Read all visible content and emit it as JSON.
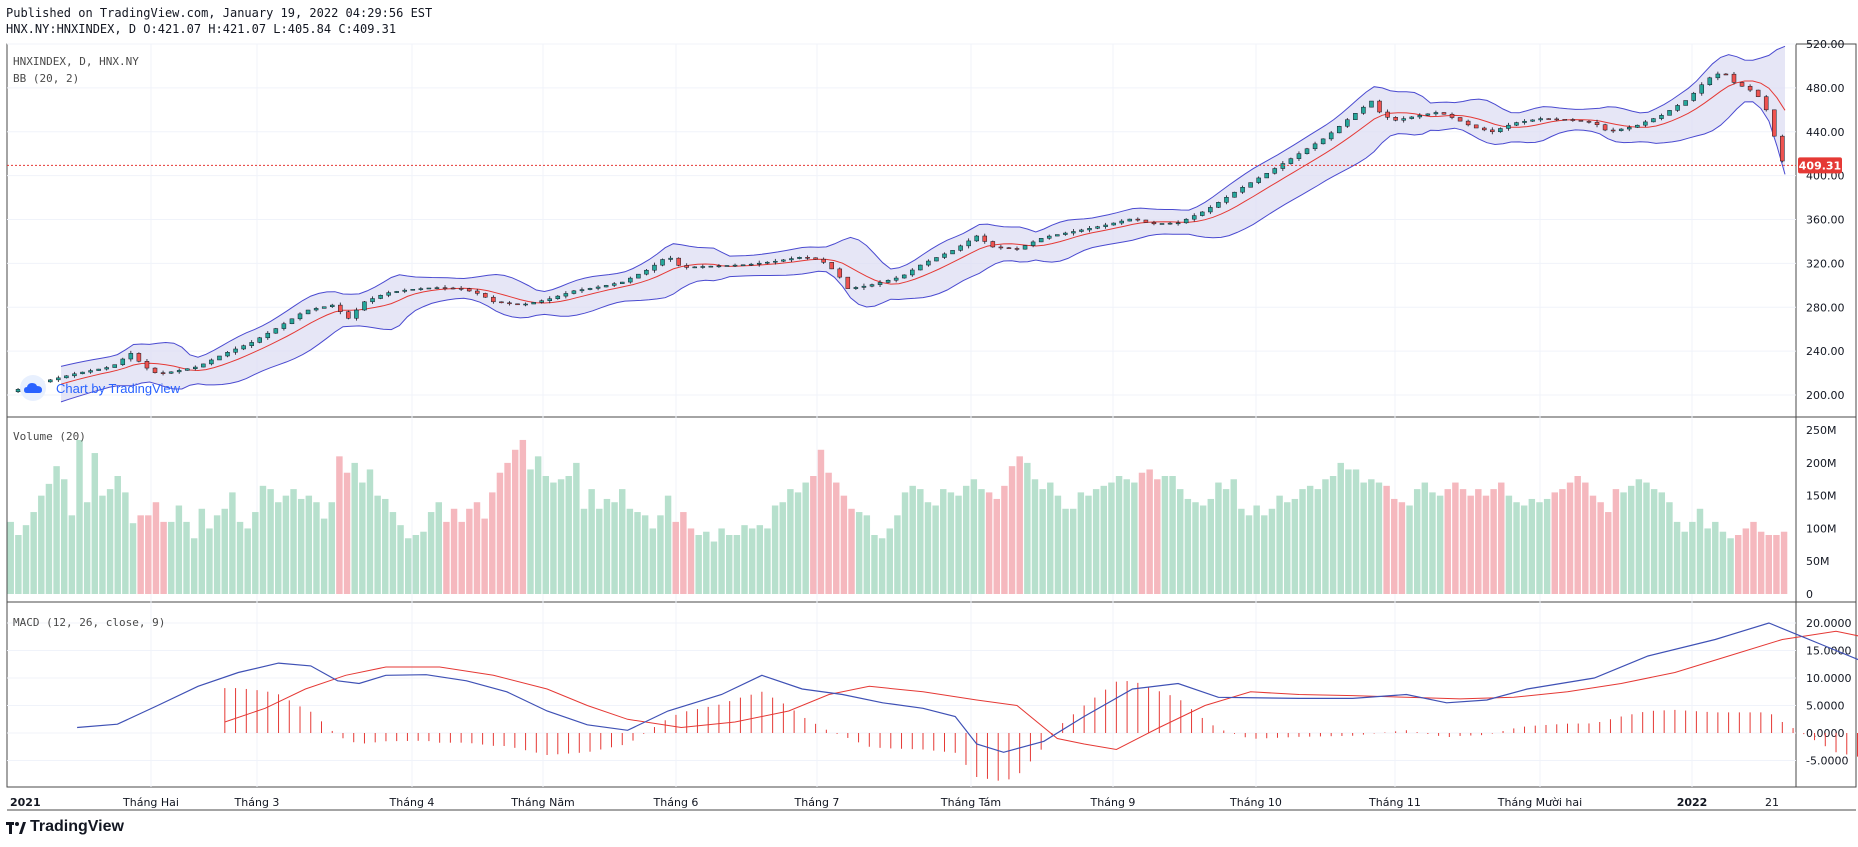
{
  "header": {
    "published": "Published on TradingView.com, January 19, 2022 04:29:56 EST",
    "ohlc": "HNX.NY:HNXINDEX, D O:421.07 H:421.07 L:405.84 C:409.31"
  },
  "panes": {
    "price": {
      "symbol_label": "HNXINDEX, D, HNX.NY",
      "indicator_label": "BB (20, 2)"
    },
    "volume": {
      "label": "Volume (20)"
    },
    "macd": {
      "label": "MACD (12, 26, close, 9)"
    }
  },
  "watermark": "Chart by TradingView",
  "footer_logo": "TradingView",
  "last_price_label": "409.31",
  "colors": {
    "up": "#26a69a",
    "down": "#ef5350",
    "bb_band": "#4a4ad0",
    "bb_basis": "#e53935",
    "bb_fill": "#dcdcf2",
    "vol_up": "#b7e0cd",
    "vol_down": "#f5b8be",
    "macd_line": "#3f51b5",
    "signal_line": "#e53935",
    "hist": "#e53935",
    "price_line": "#e53935"
  },
  "chart_data": [
    {
      "type": "candlestick",
      "title": "HNXINDEX, D, HNX.NY",
      "x_axis_labels": [
        "2021",
        "Tháng Hai",
        "Tháng 3",
        "Tháng 4",
        "Tháng Năm",
        "Tháng 6",
        "Tháng 7",
        "Tháng Tám",
        "Tháng 9",
        "Tháng 10",
        "Tháng 11",
        "Tháng Mười hai",
        "2022",
        "21"
      ],
      "y_ticks": [
        "200.00",
        "240.00",
        "280.00",
        "320.00",
        "360.00",
        "400.00",
        "440.00",
        "480.00",
        "520.00"
      ],
      "ylim": [
        180,
        520
      ],
      "close_path": [
        [
          0,
          203
        ],
        [
          12,
          212
        ],
        [
          25,
          220
        ],
        [
          38,
          226
        ],
        [
          45,
          238
        ],
        [
          50,
          226
        ],
        [
          55,
          219
        ],
        [
          62,
          222
        ],
        [
          70,
          226
        ],
        [
          80,
          238
        ],
        [
          90,
          248
        ],
        [
          100,
          262
        ],
        [
          110,
          277
        ],
        [
          120,
          282
        ],
        [
          126,
          270
        ],
        [
          132,
          285
        ],
        [
          140,
          293
        ],
        [
          148,
          296
        ],
        [
          158,
          298
        ],
        [
          168,
          297
        ],
        [
          175,
          292
        ],
        [
          180,
          285
        ],
        [
          190,
          282
        ],
        [
          200,
          287
        ],
        [
          210,
          295
        ],
        [
          218,
          298
        ],
        [
          228,
          303
        ],
        [
          238,
          315
        ],
        [
          245,
          327
        ],
        [
          250,
          316
        ],
        [
          256,
          317
        ],
        [
          266,
          318
        ],
        [
          275,
          319
        ],
        [
          285,
          322
        ],
        [
          295,
          326
        ],
        [
          302,
          323
        ],
        [
          308,
          311
        ],
        [
          312,
          297
        ],
        [
          320,
          300
        ],
        [
          332,
          308
        ],
        [
          340,
          320
        ],
        [
          352,
          333
        ],
        [
          360,
          345
        ],
        [
          366,
          335
        ],
        [
          375,
          333
        ],
        [
          385,
          344
        ],
        [
          398,
          350
        ],
        [
          408,
          355
        ],
        [
          418,
          361
        ],
        [
          425,
          356
        ],
        [
          435,
          357
        ],
        [
          445,
          368
        ],
        [
          458,
          388
        ],
        [
          470,
          405
        ],
        [
          480,
          420
        ],
        [
          490,
          435
        ],
        [
          500,
          455
        ],
        [
          507,
          468
        ],
        [
          510,
          458
        ],
        [
          515,
          450
        ],
        [
          525,
          455
        ],
        [
          532,
          458
        ],
        [
          538,
          452
        ],
        [
          545,
          444
        ],
        [
          552,
          440
        ],
        [
          560,
          448
        ],
        [
          570,
          452
        ],
        [
          580,
          451
        ],
        [
          590,
          448
        ],
        [
          595,
          440
        ],
        [
          605,
          445
        ],
        [
          615,
          455
        ],
        [
          625,
          470
        ],
        [
          632,
          488
        ],
        [
          638,
          495
        ],
        [
          642,
          485
        ],
        [
          648,
          478
        ],
        [
          652,
          470
        ],
        [
          656,
          450
        ],
        [
          658,
          422
        ],
        [
          661,
          409
        ]
      ],
      "last": {
        "open": 421.07,
        "high": 421.07,
        "low": 405.84,
        "close": 409.31
      }
    },
    {
      "type": "bar",
      "title": "Volume (20)",
      "y_ticks": [
        "0",
        "50M",
        "100M",
        "150M",
        "200M",
        "250M"
      ],
      "ylim": [
        0,
        270
      ],
      "values": [
        110,
        90,
        105,
        125,
        150,
        168,
        195,
        175,
        120,
        235,
        140,
        215,
        150,
        160,
        180,
        155,
        108,
        120,
        120,
        140,
        110,
        110,
        135,
        110,
        85,
        130,
        100,
        120,
        130,
        155,
        110,
        100,
        125,
        165,
        160,
        140,
        150,
        160,
        145,
        150,
        140,
        115,
        140,
        210,
        185,
        200,
        170,
        190,
        150,
        145,
        125,
        105,
        85,
        90,
        95,
        125,
        140,
        110,
        130,
        110,
        130,
        140,
        115,
        155,
        185,
        200,
        220,
        235,
        190,
        210,
        180,
        170,
        175,
        180,
        200,
        130,
        160,
        130,
        145,
        140,
        160,
        130,
        125,
        120,
        100,
        120,
        150,
        110,
        125,
        100,
        90,
        95,
        80,
        100,
        90,
        90,
        105,
        100,
        105,
        100,
        135,
        140,
        160,
        155,
        170,
        180,
        220,
        185,
        170,
        150,
        130,
        125,
        120,
        90,
        85,
        100,
        120,
        155,
        165,
        160,
        140,
        135,
        160,
        155,
        150,
        165,
        175,
        160,
        155,
        145,
        165,
        195,
        210,
        200,
        175,
        160,
        170,
        150,
        130,
        130,
        155,
        150,
        160,
        165,
        170,
        180,
        175,
        170,
        185,
        190,
        175,
        180,
        180,
        160,
        145,
        140,
        135,
        145,
        170,
        160,
        175,
        130,
        120,
        135,
        120,
        130,
        150,
        140,
        145,
        160,
        165,
        160,
        175,
        180,
        200,
        190,
        190,
        170,
        175,
        170,
        165,
        145,
        140,
        135,
        160,
        170,
        155,
        150,
        160,
        170,
        160,
        150,
        160,
        150,
        160,
        170,
        150,
        140,
        135,
        145,
        140,
        145,
        155,
        160,
        170,
        180,
        170,
        150,
        140,
        125,
        160,
        155,
        165,
        175,
        170,
        160,
        155,
        140,
        110,
        95,
        110,
        130,
        100,
        110,
        95,
        85,
        90,
        100,
        110,
        95,
        90,
        90,
        95
      ]
    },
    {
      "type": "line",
      "title": "MACD (12, 26, close, 9)",
      "y_ticks": [
        "-5.0000",
        "0.0000",
        "5.0000",
        "10.0000",
        "15.0000",
        "20.0000"
      ],
      "ylim": [
        -8,
        22
      ],
      "series": [
        {
          "name": "MACD",
          "values": [
            [
              25,
              1
            ],
            [
              40,
              1.6
            ],
            [
              55,
              5
            ],
            [
              70,
              8.5
            ],
            [
              85,
              11
            ],
            [
              100,
              12.7
            ],
            [
              112,
              12.2
            ],
            [
              122,
              9.5
            ],
            [
              130,
              9
            ],
            [
              140,
              10.5
            ],
            [
              155,
              10.6
            ],
            [
              170,
              9.5
            ],
            [
              185,
              7.5
            ],
            [
              200,
              4
            ],
            [
              215,
              1.5
            ],
            [
              230,
              0.5
            ],
            [
              245,
              4
            ],
            [
              265,
              7
            ],
            [
              280,
              10.5
            ],
            [
              295,
              8
            ],
            [
              310,
              7
            ],
            [
              325,
              5.5
            ],
            [
              340,
              4.5
            ],
            [
              352,
              3
            ],
            [
              360,
              -2
            ],
            [
              370,
              -3.5
            ],
            [
              385,
              -1.5
            ],
            [
              400,
              3
            ],
            [
              418,
              8
            ],
            [
              435,
              9
            ],
            [
              450,
              6.5
            ],
            [
              480,
              6.3
            ],
            [
              500,
              6.3
            ],
            [
              520,
              7
            ],
            [
              535,
              5.5
            ],
            [
              550,
              6
            ],
            [
              565,
              8
            ],
            [
              590,
              10
            ],
            [
              610,
              14
            ],
            [
              635,
              17
            ],
            [
              655,
              20
            ],
            [
              675,
              16
            ],
            [
              700,
              11
            ],
            [
              725,
              7
            ],
            [
              750,
              4
            ],
            [
              765,
              3
            ],
            [
              780,
              3.5
            ],
            [
              800,
              8
            ],
            [
              815,
              10.2
            ],
            [
              830,
              7.5
            ],
            [
              845,
              0
            ],
            [
              851,
              -5
            ]
          ]
        },
        {
          "name": "Signal",
          "values": [
            [
              80,
              2
            ],
            [
              95,
              4.5
            ],
            [
              110,
              8
            ],
            [
              125,
              10.5
            ],
            [
              140,
              12
            ],
            [
              160,
              12
            ],
            [
              180,
              10.5
            ],
            [
              200,
              8
            ],
            [
              215,
              5
            ],
            [
              230,
              2.5
            ],
            [
              250,
              1
            ],
            [
              270,
              2
            ],
            [
              290,
              4
            ],
            [
              305,
              7
            ],
            [
              320,
              8.5
            ],
            [
              340,
              7.5
            ],
            [
              360,
              6
            ],
            [
              375,
              5
            ],
            [
              390,
              -1
            ],
            [
              400,
              -2
            ],
            [
              412,
              -3
            ],
            [
              428,
              1
            ],
            [
              445,
              5
            ],
            [
              462,
              7.5
            ],
            [
              480,
              7
            ],
            [
              500,
              6.8
            ],
            [
              520,
              6.5
            ],
            [
              540,
              6.2
            ],
            [
              560,
              6.5
            ],
            [
              580,
              7.5
            ],
            [
              600,
              9
            ],
            [
              620,
              11
            ],
            [
              640,
              14
            ],
            [
              660,
              17
            ],
            [
              680,
              18.5
            ],
            [
              700,
              16.5
            ],
            [
              720,
              12
            ],
            [
              745,
              8
            ],
            [
              770,
              5.5
            ],
            [
              790,
              4
            ],
            [
              805,
              6
            ],
            [
              825,
              8
            ],
            [
              845,
              5
            ],
            [
              851,
              4
            ]
          ]
        }
      ],
      "histogram_range": [
        -5.5,
        3
      ]
    }
  ]
}
